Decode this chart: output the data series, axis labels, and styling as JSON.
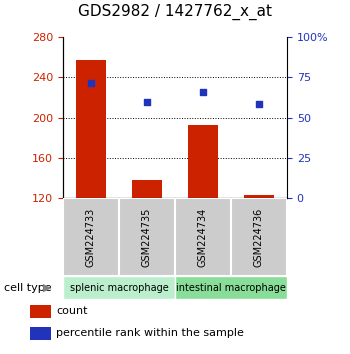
{
  "title": "GDS2982 / 1427762_x_at",
  "samples": [
    "GSM224733",
    "GSM224735",
    "GSM224734",
    "GSM224736"
  ],
  "bar_values": [
    257,
    138,
    193,
    123
  ],
  "percentile_values": [
    234,
    216,
    226,
    214
  ],
  "bar_bottom": 120,
  "ylim": [
    120,
    280
  ],
  "y_ticks": [
    120,
    160,
    200,
    240,
    280
  ],
  "y2_ticks": [
    0,
    25,
    50,
    75,
    100
  ],
  "y2_labels": [
    "0",
    "25",
    "50",
    "75",
    "100%"
  ],
  "bar_color": "#cc2200",
  "dot_color": "#2233bb",
  "groups": [
    {
      "label": "splenic macrophage",
      "samples": [
        0,
        1
      ],
      "color": "#bbeecc"
    },
    {
      "label": "intestinal macrophage",
      "samples": [
        2,
        3
      ],
      "color": "#88dd99"
    }
  ],
  "group_label": "cell type",
  "legend": [
    {
      "label": "count",
      "color": "#cc2200"
    },
    {
      "label": "percentile rank within the sample",
      "color": "#2233bb"
    }
  ],
  "left_tick_color": "#cc2200",
  "y2_color": "#2233bb",
  "title_fontsize": 11,
  "tick_fontsize": 8,
  "label_fontsize": 7,
  "legend_fontsize": 8,
  "group_fontsize": 7,
  "sample_fontsize": 7
}
